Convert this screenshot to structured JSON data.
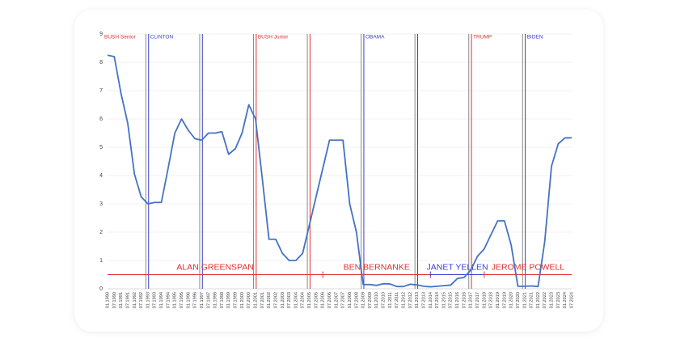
{
  "chart_data": {
    "type": "line",
    "categories": [
      "01.1990",
      "07.1990",
      "01.1991",
      "07.1991",
      "01.1992",
      "07.1992",
      "01.1993",
      "07.1993",
      "01.1994",
      "07.1994",
      "01.1995",
      "07.1995",
      "01.1996",
      "07.1996",
      "01.1997",
      "07.1997",
      "01.1998",
      "07.1998",
      "01.1999",
      "07.1999",
      "01.2000",
      "07.2000",
      "01.2001",
      "07.2001",
      "01.2002",
      "07.2002",
      "01.2003",
      "07.2003",
      "01.2004",
      "07.2004",
      "01.2005",
      "07.2005",
      "01.2006",
      "07.2006",
      "01.2007",
      "07.2007",
      "01.2008",
      "07.2008",
      "01.2009",
      "07.2009",
      "01.2010",
      "07.2010",
      "01.2011",
      "07.2011",
      "01.2012",
      "07.2012",
      "01.2013",
      "07.2013",
      "01.2014",
      "07.2014",
      "01.2015",
      "07.2015",
      "01.2016",
      "07.2016",
      "01.2017",
      "07.2017",
      "01.2018",
      "07.2018",
      "01.2019",
      "07.2019",
      "01.2020",
      "07.2020",
      "01.2021",
      "07.2021",
      "01.2022",
      "07.2022",
      "01.2023",
      "07.2023",
      "01.2024",
      "07.2024"
    ],
    "series": [
      {
        "color": "#4472c4",
        "values": [
          8.25,
          8.2,
          6.9,
          5.85,
          4.05,
          3.25,
          3.0,
          3.05,
          3.05,
          4.25,
          5.5,
          6.0,
          5.6,
          5.3,
          5.25,
          5.5,
          5.5,
          5.55,
          4.75,
          4.95,
          5.5,
          6.5,
          6.0,
          3.9,
          1.75,
          1.75,
          1.25,
          1.0,
          1.0,
          1.25,
          2.25,
          3.25,
          4.25,
          5.25,
          5.25,
          5.25,
          3.0,
          2.0,
          0.15,
          0.15,
          0.12,
          0.18,
          0.17,
          0.08,
          0.08,
          0.16,
          0.14,
          0.09,
          0.07,
          0.09,
          0.11,
          0.13,
          0.36,
          0.4,
          0.66,
          1.15,
          1.41,
          1.91,
          2.4,
          2.4,
          1.55,
          0.09,
          0.09,
          0.1,
          0.08,
          1.68,
          4.33,
          5.12,
          5.33,
          5.33
        ]
      }
    ],
    "ylim": [
      0,
      9
    ],
    "yticks": [
      0,
      1,
      2,
      3,
      4,
      5,
      6,
      7,
      8,
      9
    ],
    "grid": true,
    "elections": [
      1992.85,
      1996.85,
      2000.85,
      2004.85,
      2008.85,
      2012.85,
      2016.85,
      2020.85
    ],
    "election_color": "#8a8a8a",
    "presidents": [
      {
        "label": "BUSH Senior",
        "color": "#e03030",
        "inaugurations": []
      },
      {
        "label": "CLINTON",
        "color": "#3a3fd0",
        "inaugurations": [
          1993.05,
          1997.05
        ]
      },
      {
        "label": "BUSH Junior",
        "color": "#e03030",
        "inaugurations": [
          2001.05,
          2005.05
        ]
      },
      {
        "label": "OBAMA",
        "color": "#3a3fd0",
        "inaugurations": [
          2009.05,
          2013.05
        ]
      },
      {
        "label": "TRUMP",
        "color": "#e03030",
        "inaugurations": [
          2017.05
        ]
      },
      {
        "label": "BIDEN",
        "color": "#3a3fd0",
        "inaugurations": [
          2021.05
        ]
      }
    ],
    "chairs": [
      {
        "label": "ALAN GREENSPAN",
        "color": "#e03030",
        "start": 1990.0,
        "end": 2006.0
      },
      {
        "label": "BEN BERNANKE",
        "color": "#e03030",
        "start": 2006.0,
        "end": 2014.0
      },
      {
        "label": "JANET YELLEN",
        "color": "#3a3fd0",
        "start": 2014.0,
        "end": 2018.0
      },
      {
        "label": "JEROME POWELL",
        "color": "#e03030",
        "start": 2018.0,
        "end": 2024.5
      }
    ]
  }
}
